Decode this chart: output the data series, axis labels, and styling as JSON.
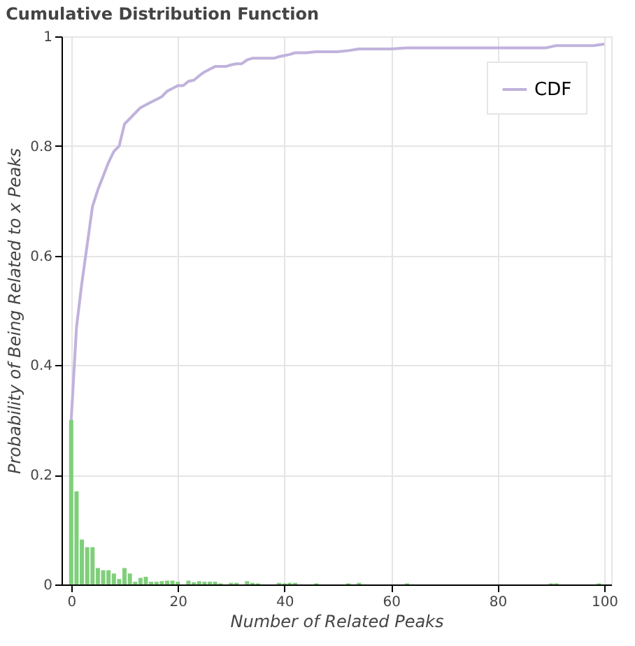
{
  "chart_data": {
    "type": "bar",
    "title": "Cumulative Distribution Function",
    "xlabel": "Number of Related Peaks",
    "ylabel": "Probability of Being Related to x Peaks",
    "xlim": [
      -0.5,
      100
    ],
    "xticks": [
      0,
      20,
      40,
      60,
      80,
      100
    ],
    "ylim": [
      0,
      1
    ],
    "yticks": [
      0,
      {
        "value": 0.2,
        "label": "0.2"
      },
      {
        "value": 0.4,
        "label": "0.4"
      },
      {
        "value": 0.6,
        "label": "0.6"
      },
      {
        "value": 0.8,
        "label": "0.8"
      },
      1
    ],
    "grid": true,
    "legend": "top right",
    "series": [
      {
        "color": "#7fcf7a",
        "x": [
          0,
          1,
          2,
          3,
          4,
          5,
          6,
          7,
          8,
          9,
          10,
          11,
          12,
          13,
          14,
          15,
          16,
          17,
          18,
          19,
          20,
          22,
          23,
          24,
          25,
          26,
          27,
          28,
          30,
          31,
          33,
          34,
          35,
          39,
          40,
          41,
          42,
          46,
          52,
          54,
          63,
          90,
          91,
          99
        ],
        "values": [
          0.3,
          0.17,
          0.082,
          0.068,
          0.068,
          0.03,
          0.026,
          0.026,
          0.02,
          0.01,
          0.03,
          0.02,
          0.005,
          0.012,
          0.014,
          0.005,
          0.005,
          0.006,
          0.007,
          0.007,
          0.005,
          0.007,
          0.004,
          0.006,
          0.005,
          0.005,
          0.005,
          0.002,
          0.003,
          0.003,
          0.006,
          0.003,
          0.002,
          0.003,
          0.002,
          0.003,
          0.003,
          0.002,
          0.002,
          0.003,
          0.002,
          0.002,
          0.002,
          0.002
        ]
      },
      {
        "type": "line",
        "name": "CDF",
        "color": "#c0b2dc",
        "x": [
          0,
          1,
          2,
          3,
          4,
          5,
          6,
          7,
          8,
          9,
          10,
          11,
          12,
          13,
          14,
          15,
          16,
          17,
          18,
          19,
          20,
          21,
          22,
          23,
          24,
          25,
          26,
          27,
          29,
          30,
          31,
          32,
          33,
          34,
          36,
          38,
          39,
          40,
          41,
          42,
          44,
          46,
          50,
          52,
          54,
          60,
          63,
          70,
          80,
          89,
          90,
          91,
          98,
          100
        ],
        "values": [
          0.3,
          0.47,
          0.55,
          0.62,
          0.69,
          0.72,
          0.745,
          0.77,
          0.79,
          0.8,
          0.84,
          0.85,
          0.86,
          0.87,
          0.875,
          0.88,
          0.885,
          0.89,
          0.9,
          0.905,
          0.91,
          0.91,
          0.918,
          0.92,
          0.928,
          0.935,
          0.94,
          0.945,
          0.945,
          0.948,
          0.95,
          0.95,
          0.957,
          0.96,
          0.96,
          0.96,
          0.963,
          0.965,
          0.967,
          0.97,
          0.97,
          0.972,
          0.972,
          0.974,
          0.977,
          0.977,
          0.979,
          0.979,
          0.979,
          0.979,
          0.981,
          0.983,
          0.983,
          0.986
        ]
      }
    ]
  }
}
